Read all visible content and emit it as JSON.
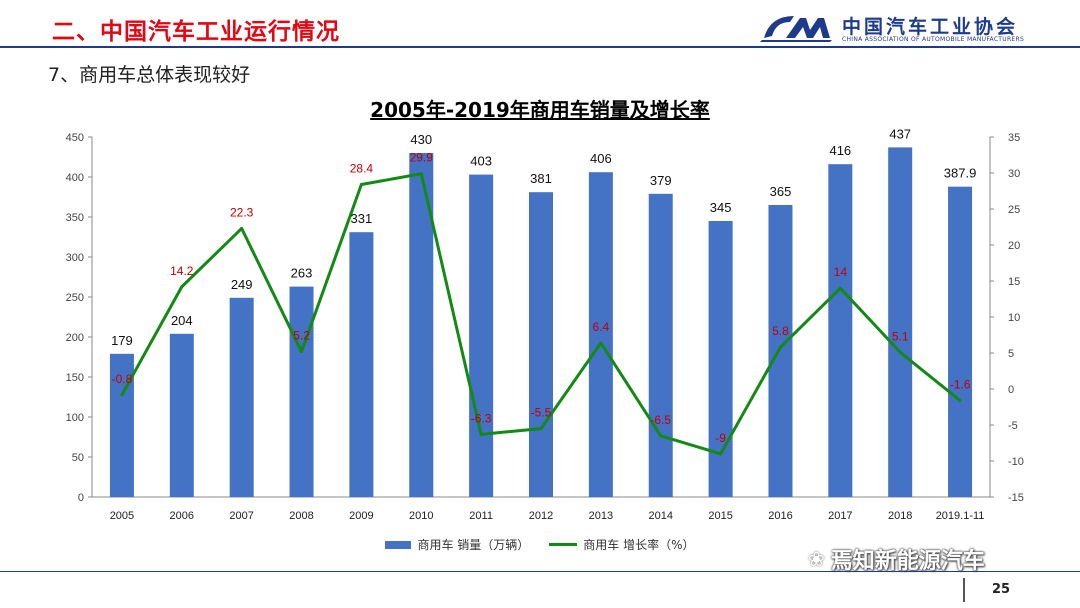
{
  "header": {
    "title": "二、中国汽车工业运行情况",
    "logo_cn": "中国汽车工业协会",
    "logo_en": "CHINA ASSOCIATION OF AUTOMOBILE MANUFACTURERS"
  },
  "section_title": "7、商用车总体表现较好",
  "footer": {
    "watermark": "焉知新能源汽车",
    "watermark_icon": "wechat-icon",
    "page_number": "25"
  },
  "colors": {
    "header_red": "#e30613",
    "brand_blue": "#1e3a8a",
    "bar": "#4472c4",
    "line": "#138a13",
    "rate_label": "#c00000"
  },
  "chart_data": {
    "type": "bar+line",
    "title": "2005年-2019年商用车销量及增长率",
    "categories": [
      "2005",
      "2006",
      "2007",
      "2008",
      "2009",
      "2010",
      "2011",
      "2012",
      "2013",
      "2014",
      "2015",
      "2016",
      "2017",
      "2018",
      "2019.1-11"
    ],
    "series": [
      {
        "name": "商用车 销量（万辆）",
        "type": "bar",
        "axis": "left",
        "values": [
          179,
          204,
          249,
          263,
          331,
          430,
          403,
          381,
          406,
          379,
          345,
          365,
          416,
          437,
          387.9
        ]
      },
      {
        "name": "商用车 增长率（%）",
        "type": "line",
        "axis": "right",
        "values": [
          -0.8,
          14.2,
          22.3,
          5.2,
          28.4,
          29.9,
          -6.3,
          -5.5,
          6.4,
          -6.5,
          -9,
          5.8,
          14,
          5.1,
          -1.6
        ]
      }
    ],
    "y_left": {
      "min": 0,
      "max": 450,
      "step": 50
    },
    "y_right": {
      "min": -15,
      "max": 35,
      "step": 5
    },
    "legend_position": "bottom",
    "grid": false
  }
}
